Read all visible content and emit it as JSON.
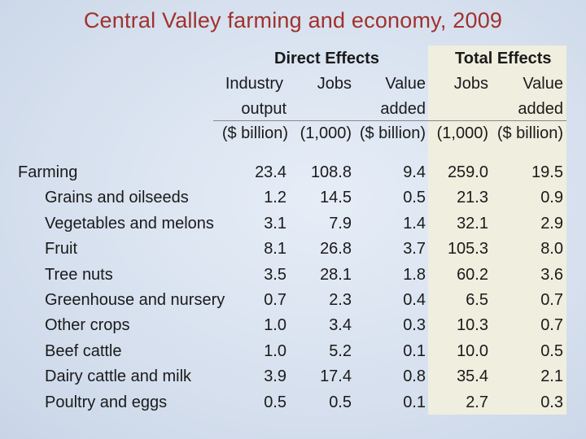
{
  "title": "Central Valley farming and economy, 2009",
  "header": {
    "direct_effects": "Direct Effects",
    "total_effects": "Total Effects",
    "industry": "Industry",
    "output": "output",
    "unit_billion": "($ billion)",
    "jobs": "Jobs",
    "unit_thousand": "(1,000)",
    "value": "Value",
    "added": "added",
    "total_jobs": "Jobs",
    "total_unit_thousand": "(1,000)",
    "total_value": "Value",
    "total_added": "added",
    "total_unit_billion": "($ billion)"
  },
  "rows": [
    {
      "label": "Farming",
      "output": "23.4",
      "jobs": "108.8",
      "value_added": "9.4",
      "total_jobs": "259.0",
      "total_value_added": "19.5"
    },
    {
      "label": "Grains and oilseeds",
      "output": "1.2",
      "jobs": "14.5",
      "value_added": "0.5",
      "total_jobs": "21.3",
      "total_value_added": "0.9"
    },
    {
      "label": "Vegetables and melons",
      "output": "3.1",
      "jobs": "7.9",
      "value_added": "1.4",
      "total_jobs": "32.1",
      "total_value_added": "2.9"
    },
    {
      "label": "Fruit",
      "output": "8.1",
      "jobs": "26.8",
      "value_added": "3.7",
      "total_jobs": "105.3",
      "total_value_added": "8.0"
    },
    {
      "label": "Tree nuts",
      "output": "3.5",
      "jobs": "28.1",
      "value_added": "1.8",
      "total_jobs": "60.2",
      "total_value_added": "3.6"
    },
    {
      "label": "Greenhouse and nursery",
      "output": "0.7",
      "jobs": "2.3",
      "value_added": "0.4",
      "total_jobs": "6.5",
      "total_value_added": "0.7"
    },
    {
      "label": "Other crops",
      "output": "1.0",
      "jobs": "3.4",
      "value_added": "0.3",
      "total_jobs": "10.3",
      "total_value_added": "0.7"
    },
    {
      "label": "Beef cattle",
      "output": "1.0",
      "jobs": "5.2",
      "value_added": "0.1",
      "total_jobs": "10.0",
      "total_value_added": "0.5"
    },
    {
      "label": "Dairy cattle and milk",
      "output": "3.9",
      "jobs": "17.4",
      "value_added": "0.8",
      "total_jobs": "35.4",
      "total_value_added": "2.1"
    },
    {
      "label": "Poultry and eggs",
      "output": "0.5",
      "jobs": "0.5",
      "value_added": "0.1",
      "total_jobs": "2.7",
      "total_value_added": "0.3"
    }
  ]
}
